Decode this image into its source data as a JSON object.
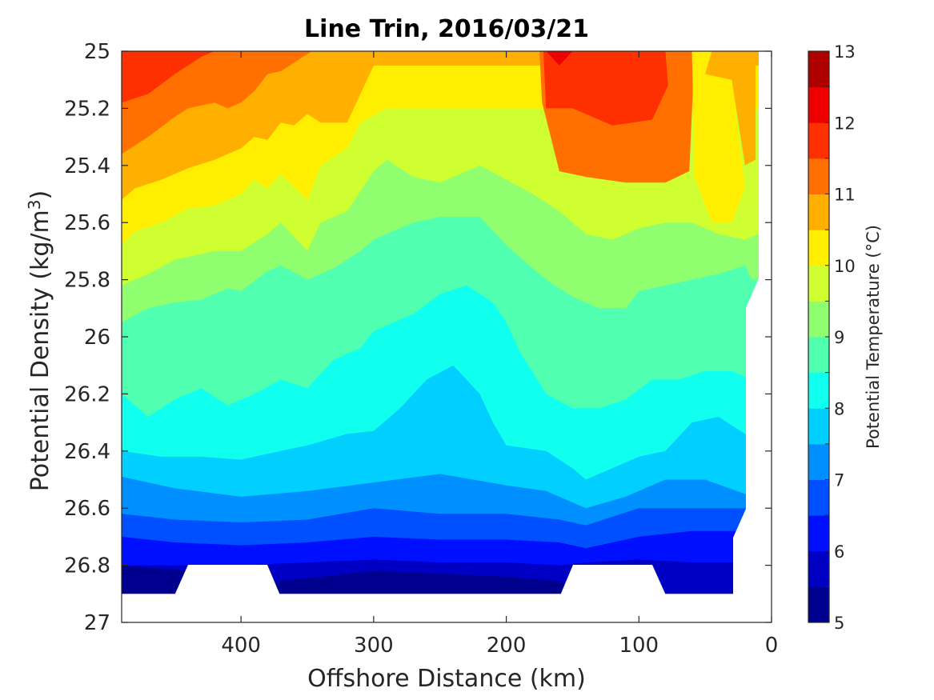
{
  "chart_data": {
    "type": "contour",
    "title": "Line Trin, 2016/03/21",
    "xlabel": "Offshore Distance (km)",
    "ylabel_prefix": "Potential Density (kg/m",
    "ylabel_sup": "3",
    "ylabel_suffix": ")",
    "colorbar_label": "Potential Temperature (°C)",
    "xlim": [
      490,
      0
    ],
    "ylim": [
      25,
      27
    ],
    "x_ticks": [
      "400",
      "300",
      "200",
      "100",
      "0"
    ],
    "x_tick_values": [
      400,
      300,
      200,
      100,
      0
    ],
    "y_ticks": [
      "25",
      "25.2",
      "25.4",
      "25.6",
      "25.8",
      "26",
      "26.2",
      "26.4",
      "26.6",
      "26.8",
      "27"
    ],
    "y_tick_values": [
      25,
      25.2,
      25.4,
      25.6,
      25.8,
      26,
      26.2,
      26.4,
      26.6,
      26.8,
      27
    ],
    "colorbar_ticks": [
      "5",
      "6",
      "7",
      "8",
      "9",
      "10",
      "11",
      "12",
      "13"
    ],
    "colorbar_tick_values": [
      5,
      6,
      7,
      8,
      9,
      10,
      11,
      12,
      13
    ],
    "levels": [
      5,
      5.5,
      6,
      6.5,
      7,
      7.5,
      8,
      8.5,
      9,
      9.5,
      10,
      10.5,
      11,
      11.5,
      12,
      12.5,
      13
    ],
    "colormap": [
      "#00008f",
      "#0000c4",
      "#0010ff",
      "#0050ff",
      "#008fff",
      "#00cfff",
      "#10ffef",
      "#50ffaf",
      "#8fff70",
      "#cfff30",
      "#ffee00",
      "#ffaf00",
      "#ff7000",
      "#ff3000",
      "#ef0000",
      "#af0000"
    ],
    "grid": false,
    "colorbar_position": "right",
    "isotherms": [
      {
        "level": 12,
        "x": [
          490,
          470,
          450,
          430,
          400,
          375,
          350,
          330,
          300
        ],
        "y": [
          24.99,
          24.97,
          24.98,
          24.96,
          24.97,
          24.96,
          24.95,
          24.96,
          24.95
        ]
      },
      {
        "level": 11.5,
        "x": [
          490,
          470,
          450,
          430,
          410,
          400,
          390,
          370,
          350,
          330,
          310,
          300
        ],
        "y": [
          25.18,
          25.15,
          25.08,
          25.02,
          24.98,
          25.0,
          24.98,
          24.99,
          24.97,
          24.98,
          24.97,
          24.96
        ]
      },
      {
        "level": 11,
        "x": [
          490,
          470,
          450,
          440,
          420,
          410,
          400,
          390,
          380,
          370,
          350,
          340,
          320,
          305,
          300
        ],
        "y": [
          25.36,
          25.3,
          25.23,
          25.2,
          25.18,
          25.2,
          25.18,
          25.14,
          25.08,
          25.07,
          25.01,
          24.98,
          24.96,
          24.96,
          24.95
        ]
      },
      {
        "level": 10.5,
        "x": [
          490,
          480,
          460,
          440,
          420,
          400,
          390,
          380,
          370,
          360,
          350,
          340,
          320,
          310,
          300
        ],
        "y": [
          25.52,
          25.48,
          25.45,
          25.41,
          25.38,
          25.34,
          25.3,
          25.31,
          25.25,
          25.26,
          25.22,
          25.25,
          25.25,
          25.15,
          25.05
        ]
      },
      {
        "level": 10,
        "x": [
          490,
          480,
          460,
          440,
          420,
          400,
          390,
          380,
          370,
          350,
          340,
          320,
          310,
          290
        ],
        "y": [
          25.68,
          25.63,
          25.6,
          25.55,
          25.54,
          25.5,
          25.45,
          25.48,
          25.43,
          25.52,
          25.4,
          25.34,
          25.25,
          25.2
        ]
      },
      {
        "level": 9.5,
        "x": [
          490,
          470,
          450,
          420,
          400,
          380,
          370,
          350,
          340,
          320,
          300,
          290,
          270,
          250,
          220,
          200,
          180,
          160,
          140,
          120,
          100,
          80,
          60,
          40,
          20,
          10
        ],
        "y": [
          25.82,
          25.78,
          25.73,
          25.7,
          25.7,
          25.64,
          25.6,
          25.7,
          25.6,
          25.56,
          25.42,
          25.38,
          25.44,
          25.46,
          25.4,
          25.45,
          25.5,
          25.56,
          25.64,
          25.66,
          25.62,
          25.6,
          25.6,
          25.64,
          25.66,
          25.64
        ]
      },
      {
        "level": 9,
        "x": [
          490,
          470,
          450,
          430,
          410,
          400,
          380,
          370,
          350,
          330,
          310,
          300,
          270,
          250,
          220,
          200,
          170,
          150,
          130,
          110,
          100,
          80,
          60,
          40,
          20,
          15
        ],
        "y": [
          25.95,
          25.9,
          25.88,
          25.87,
          25.83,
          25.84,
          25.77,
          25.75,
          25.8,
          25.76,
          25.7,
          25.66,
          25.6,
          25.58,
          25.58,
          25.68,
          25.8,
          25.86,
          25.9,
          25.9,
          25.84,
          25.82,
          25.8,
          25.78,
          25.75,
          25.8
        ]
      }
    ],
    "blank_regions": [
      {
        "x": [
          440,
          380
        ],
        "y": [
          26.8,
          26.9
        ]
      },
      {
        "x": [
          150,
          90
        ],
        "y": [
          26.8,
          26.9
        ]
      }
    ]
  }
}
